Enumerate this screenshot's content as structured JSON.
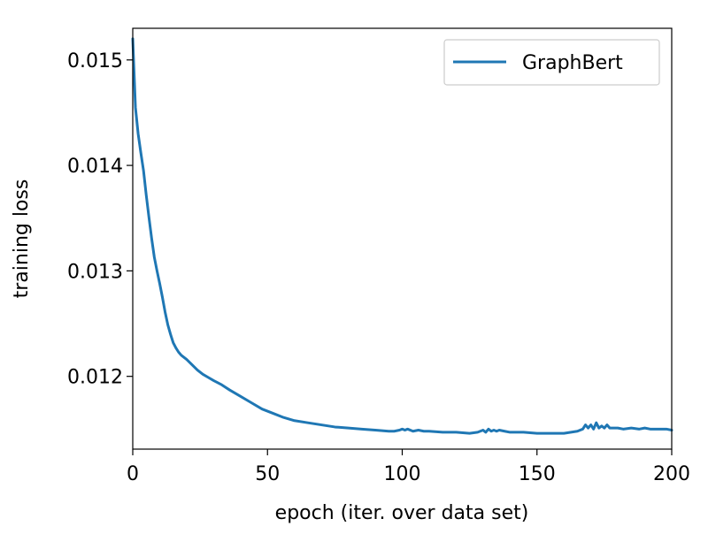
{
  "chart_data": {
    "type": "line",
    "title": "",
    "xlabel": "epoch (iter. over data set)",
    "ylabel": "training loss",
    "xlim": [
      0,
      200
    ],
    "ylim": [
      0.01131,
      0.0153
    ],
    "xticks": [
      0,
      50,
      100,
      150,
      200
    ],
    "xtick_labels": [
      "0",
      "50",
      "100",
      "150",
      "200"
    ],
    "yticks": [
      0.012,
      0.013,
      0.014,
      0.015
    ],
    "ytick_labels": [
      "0.012",
      "0.013",
      "0.014",
      "0.015"
    ],
    "grid": false,
    "legend": {
      "position": "top-right",
      "entries": [
        "GraphBert"
      ]
    },
    "series": [
      {
        "name": "GraphBert",
        "color": "#1f77b4",
        "x": [
          0,
          1,
          2,
          3,
          4,
          5,
          6,
          7,
          8,
          9,
          10,
          11,
          12,
          13,
          14,
          15,
          16,
          17,
          18,
          19,
          20,
          22,
          24,
          26,
          28,
          30,
          33,
          36,
          40,
          44,
          48,
          52,
          56,
          60,
          65,
          70,
          75,
          80,
          85,
          90,
          95,
          97,
          99,
          100,
          101,
          102,
          104,
          106,
          108,
          110,
          115,
          120,
          125,
          128,
          130,
          131,
          132,
          133,
          134,
          135,
          136,
          138,
          140,
          145,
          150,
          155,
          160,
          165,
          167,
          168,
          169,
          170,
          171,
          172,
          173,
          174,
          175,
          176,
          177,
          178,
          180,
          182,
          185,
          188,
          190,
          192,
          195,
          198,
          200
        ],
        "values": [
          0.0152,
          0.01455,
          0.0143,
          0.01412,
          0.01395,
          0.01372,
          0.01351,
          0.01331,
          0.01313,
          0.013,
          0.01288,
          0.01275,
          0.01261,
          0.01249,
          0.0124,
          0.01232,
          0.01227,
          0.01223,
          0.0122,
          0.01218,
          0.01216,
          0.01211,
          0.01206,
          0.01202,
          0.01199,
          0.01196,
          0.01192,
          0.01187,
          0.01181,
          0.01175,
          0.01169,
          0.01165,
          0.01161,
          0.01158,
          0.01156,
          0.01154,
          0.01152,
          0.01151,
          0.0115,
          0.01149,
          0.01148,
          0.01148,
          0.01149,
          0.0115,
          0.01149,
          0.0115,
          0.01148,
          0.01149,
          0.01148,
          0.01148,
          0.01147,
          0.01147,
          0.01146,
          0.01147,
          0.01149,
          0.01147,
          0.0115,
          0.01148,
          0.01149,
          0.01148,
          0.01149,
          0.01148,
          0.01147,
          0.01147,
          0.01146,
          0.01146,
          0.01146,
          0.01148,
          0.0115,
          0.01154,
          0.01151,
          0.01154,
          0.0115,
          0.01156,
          0.01151,
          0.01153,
          0.01151,
          0.01154,
          0.01151,
          0.01151,
          0.01151,
          0.0115,
          0.01151,
          0.0115,
          0.01151,
          0.0115,
          0.0115,
          0.0115,
          0.01149
        ]
      }
    ]
  }
}
